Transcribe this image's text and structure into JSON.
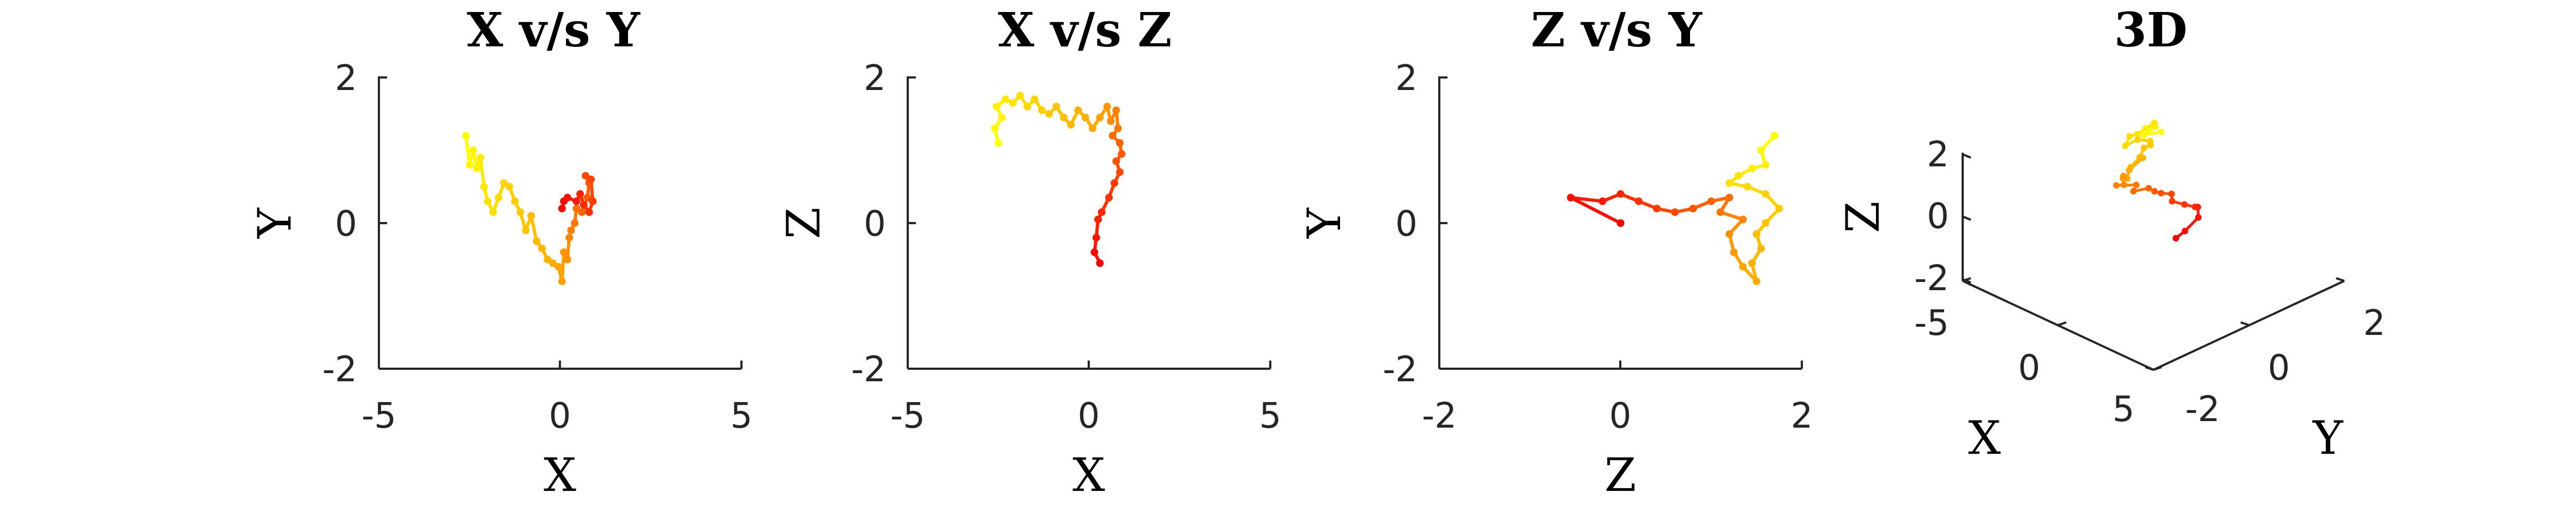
{
  "chart_data": [
    {
      "type": "line",
      "title": "X v/s Y",
      "xlabel": "X",
      "ylabel": "Y",
      "xlim": [
        -5,
        5
      ],
      "ylim": [
        -2,
        2
      ],
      "xticks": [
        "-5",
        "0",
        "5"
      ],
      "yticks": [
        "-2",
        "0",
        "2"
      ],
      "points": [
        [
          -2.6,
          1.2
        ],
        [
          -2.5,
          0.8
        ],
        [
          -2.4,
          1.0
        ],
        [
          -2.3,
          0.75
        ],
        [
          -2.2,
          0.9
        ],
        [
          -2.1,
          0.5
        ],
        [
          -2.0,
          0.3
        ],
        [
          -1.85,
          0.15
        ],
        [
          -1.7,
          0.35
        ],
        [
          -1.55,
          0.55
        ],
        [
          -1.4,
          0.5
        ],
        [
          -1.25,
          0.3
        ],
        [
          -1.1,
          0.15
        ],
        [
          -0.95,
          -0.1
        ],
        [
          -0.8,
          0.1
        ],
        [
          -0.65,
          -0.25
        ],
        [
          -0.5,
          -0.35
        ],
        [
          -0.35,
          -0.5
        ],
        [
          -0.2,
          -0.55
        ],
        [
          -0.05,
          -0.6
        ],
        [
          0.05,
          -0.8
        ],
        [
          0.1,
          -0.4
        ],
        [
          0.2,
          -0.5
        ],
        [
          0.25,
          -0.2
        ],
        [
          0.3,
          -0.1
        ],
        [
          0.4,
          0.0
        ],
        [
          0.45,
          0.2
        ],
        [
          0.6,
          0.15
        ],
        [
          0.75,
          0.35
        ],
        [
          0.8,
          0.55
        ],
        [
          0.7,
          0.65
        ],
        [
          0.85,
          0.6
        ],
        [
          0.9,
          0.3
        ],
        [
          0.8,
          0.15
        ],
        [
          0.65,
          0.25
        ],
        [
          0.55,
          0.4
        ],
        [
          0.45,
          0.3
        ],
        [
          0.2,
          0.35
        ],
        [
          0.1,
          0.3
        ],
        [
          0.05,
          0.2
        ]
      ]
    },
    {
      "type": "line",
      "title": "X v/s Z",
      "xlabel": "X",
      "ylabel": "Z",
      "xlim": [
        -5,
        5
      ],
      "ylim": [
        -2,
        2
      ],
      "xticks": [
        "-5",
        "0",
        "5"
      ],
      "yticks": [
        "-2",
        "0",
        "2"
      ],
      "points": [
        [
          -2.5,
          1.1
        ],
        [
          -2.6,
          1.3
        ],
        [
          -2.4,
          1.45
        ],
        [
          -2.55,
          1.6
        ],
        [
          -2.3,
          1.7
        ],
        [
          -2.1,
          1.65
        ],
        [
          -1.9,
          1.75
        ],
        [
          -1.7,
          1.6
        ],
        [
          -1.5,
          1.7
        ],
        [
          -1.3,
          1.55
        ],
        [
          -1.1,
          1.5
        ],
        [
          -0.9,
          1.6
        ],
        [
          -0.7,
          1.45
        ],
        [
          -0.5,
          1.35
        ],
        [
          -0.3,
          1.55
        ],
        [
          -0.1,
          1.45
        ],
        [
          0.1,
          1.3
        ],
        [
          0.3,
          1.45
        ],
        [
          0.5,
          1.6
        ],
        [
          0.6,
          1.4
        ],
        [
          0.75,
          1.55
        ],
        [
          0.8,
          1.3
        ],
        [
          0.65,
          1.2
        ],
        [
          0.85,
          1.1
        ],
        [
          0.9,
          0.95
        ],
        [
          0.75,
          0.85
        ],
        [
          0.85,
          0.7
        ],
        [
          0.7,
          0.55
        ],
        [
          0.55,
          0.35
        ],
        [
          0.35,
          0.15
        ],
        [
          0.25,
          0.05
        ],
        [
          0.2,
          -0.2
        ],
        [
          0.15,
          -0.4
        ],
        [
          0.3,
          -0.55
        ]
      ]
    },
    {
      "type": "line",
      "title": "Z v/s Y",
      "xlabel": "Z",
      "ylabel": "Y",
      "xlim": [
        -2,
        2
      ],
      "ylim": [
        -2,
        2
      ],
      "xticks": [
        "-2",
        "0",
        "2"
      ],
      "yticks": [
        "-2",
        "0",
        "2"
      ],
      "points": [
        [
          1.7,
          1.2
        ],
        [
          1.55,
          1.0
        ],
        [
          1.6,
          0.8
        ],
        [
          1.45,
          0.75
        ],
        [
          1.3,
          0.65
        ],
        [
          1.2,
          0.55
        ],
        [
          1.4,
          0.5
        ],
        [
          1.6,
          0.4
        ],
        [
          1.75,
          0.2
        ],
        [
          1.6,
          0.0
        ],
        [
          1.5,
          -0.15
        ],
        [
          1.55,
          -0.35
        ],
        [
          1.45,
          -0.55
        ],
        [
          1.5,
          -0.8
        ],
        [
          1.35,
          -0.6
        ],
        [
          1.25,
          -0.4
        ],
        [
          1.2,
          -0.15
        ],
        [
          1.35,
          0.05
        ],
        [
          1.1,
          0.15
        ],
        [
          1.2,
          0.35
        ],
        [
          1.0,
          0.3
        ],
        [
          0.8,
          0.2
        ],
        [
          0.6,
          0.15
        ],
        [
          0.4,
          0.2
        ],
        [
          0.2,
          0.3
        ],
        [
          0.0,
          0.4
        ],
        [
          -0.2,
          0.3
        ],
        [
          -0.55,
          0.35
        ],
        [
          0.0,
          0.0
        ]
      ]
    },
    {
      "type": "scatter",
      "title": "3D",
      "xlabel": "X",
      "ylabel": "Y",
      "zlabel": "Z",
      "xlim": [
        -5,
        5
      ],
      "ylim": [
        -2,
        2
      ],
      "zlim": [
        -2,
        2
      ],
      "xticks": [
        "-5",
        "0",
        "5"
      ],
      "yticks": [
        "-2",
        "0",
        "2"
      ],
      "zticks": [
        "-2",
        "0",
        "2"
      ]
    }
  ],
  "colormap": [
    "#ffff00",
    "#ffa500",
    "#ff0000"
  ]
}
